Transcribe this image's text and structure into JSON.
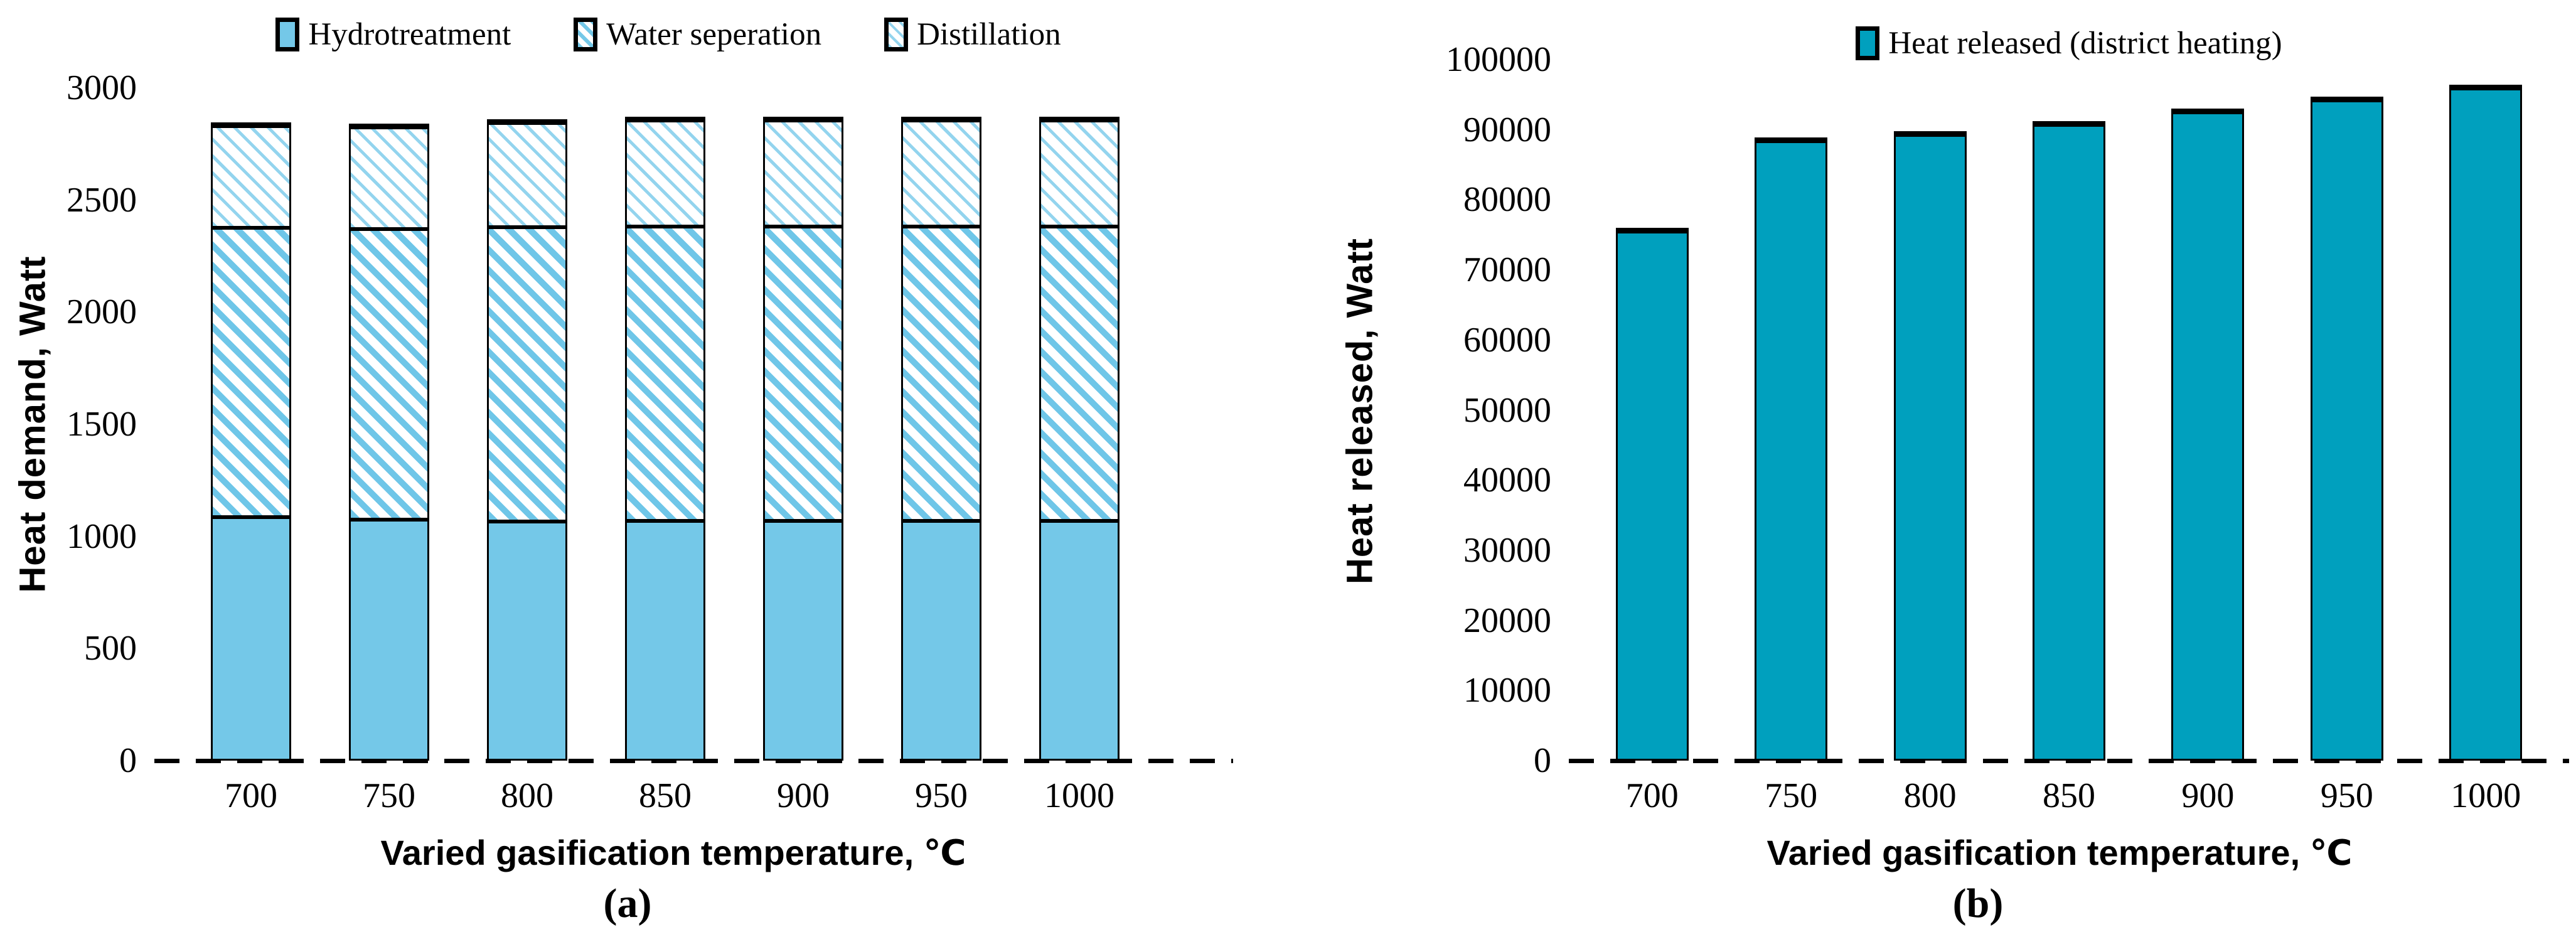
{
  "figure": {
    "background": "#ffffff",
    "caption_a": "(a)",
    "caption_b": "(b)"
  },
  "chart_data": [
    {
      "type": "bar",
      "stacked": true,
      "caption": "(a)",
      "legend_position": "top",
      "grid": false,
      "xlabel": "Varied gasification temperature, ℃",
      "ylabel": "Heat demand, Watt",
      "categories": [
        "700",
        "750",
        "800",
        "850",
        "900",
        "950",
        "1000"
      ],
      "yticks": [
        0,
        500,
        1000,
        1500,
        2000,
        2500,
        3000
      ],
      "ylim": [
        0,
        3000
      ],
      "baseline_style": "dashed",
      "series": [
        {
          "name": "Hydrotreatment",
          "pattern": "solid",
          "values": [
            1085,
            1075,
            1066,
            1070,
            1070,
            1070,
            1070
          ]
        },
        {
          "name": "Water seperation",
          "pattern": "hatch-dense",
          "values": [
            1292,
            1295,
            1312,
            1312,
            1312,
            1312,
            1312
          ]
        },
        {
          "name": "Distillation",
          "pattern": "hatch-light",
          "values": [
            468,
            470,
            482,
            488,
            488,
            490,
            490
          ]
        }
      ],
      "colors": {
        "solid": "#74C8E8",
        "hatch": "#6FC6E8",
        "hatch_light": "#93D4EE",
        "outline": "#000000"
      }
    },
    {
      "type": "bar",
      "stacked": false,
      "caption": "(b)",
      "legend_position": "top",
      "grid": false,
      "xlabel": "Varied gasification temperature, ℃",
      "ylabel": "Heat released, Watt",
      "categories": [
        "700",
        "750",
        "800",
        "850",
        "900",
        "950",
        "1000"
      ],
      "yticks": [
        0,
        10000,
        20000,
        30000,
        40000,
        50000,
        60000,
        70000,
        80000,
        90000,
        100000
      ],
      "ylim": [
        0,
        100000
      ],
      "baseline_style": "dashed",
      "series": [
        {
          "name": "Heat released (district heating)",
          "pattern": "solid",
          "values": [
            76000,
            88900,
            89800,
            91200,
            93000,
            94700,
            96400
          ]
        }
      ],
      "colors": {
        "solid": "#00A0BE",
        "outline": "#000000"
      }
    }
  ]
}
